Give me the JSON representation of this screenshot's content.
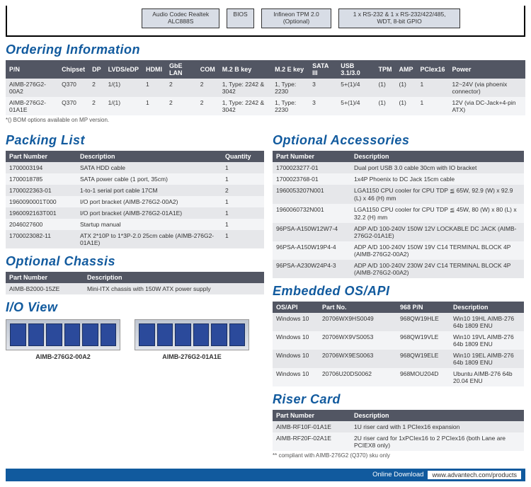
{
  "diagram": [
    "Audio Codec\nRealtek ALC888S",
    "BIOS",
    "Infineon TPM 2.0\n(Optional)",
    "1 x RS-232 & 1 x RS-232/422/485,\nWDT, 8-bit GPIO"
  ],
  "headings": {
    "ordering": "Ordering Information",
    "packing": "Packing List",
    "optchassis": "Optional Chassis",
    "ioview": "I/O View",
    "optacc": "Optional Accessories",
    "os": "Embedded OS/API",
    "riser": "Riser Card"
  },
  "ordering": {
    "cols": [
      "P/N",
      "Chipset",
      "DP",
      "LVDS/eDP",
      "HDMI",
      "GbE LAN",
      "COM",
      "M.2 B key",
      "M.2 E key",
      "SATA III",
      "USB 3.1/3.0",
      "TPM",
      "AMP",
      "PCIex16",
      "Power"
    ],
    "rows": [
      [
        "AIMB-276G2-00A2",
        "Q370",
        "2",
        "1/(1)",
        "1",
        "2",
        "2",
        "1, Type: 2242 & 3042",
        "1, Type: 2230",
        "3",
        "5+(1)/4",
        "(1)",
        "(1)",
        "1",
        "12~24V (via phoenix connector)"
      ],
      [
        "AIMB-276G2-01A1E",
        "Q370",
        "2",
        "1/(1)",
        "1",
        "2",
        "2",
        "1, Type: 2242 & 3042",
        "1, Type: 2230",
        "3",
        "5+(1)/4",
        "(1)",
        "(1)",
        "1",
        "12V (via DC-Jack+4-pin ATX)"
      ]
    ],
    "note": "*() BOM options available on MP version."
  },
  "packing": {
    "cols": [
      "Part Number",
      "Description",
      "Quantity"
    ],
    "rows": [
      [
        "1700003194",
        "SATA HDD cable",
        "1"
      ],
      [
        "1700018785",
        "SATA power cable (1 port, 35cm)",
        "1"
      ],
      [
        "1700022363-01",
        "1-to-1 serial port cable 17CM",
        "2"
      ],
      [
        "1960090001T000",
        "I/O port bracket (AIMB-276G2-00A2)",
        "1"
      ],
      [
        "1960092163T001",
        "I/O port bracket (AIMB-276G2-01A1E)",
        "1"
      ],
      [
        "2046027600",
        "Startup manual",
        "1"
      ],
      [
        "1700023082-11",
        "ATX 2*10P to 1*3P-2.0 25cm cable (AIMB-276G2-01A1E)",
        "1"
      ]
    ]
  },
  "optchassis": {
    "cols": [
      "Part Number",
      "Description"
    ],
    "rows": [
      [
        "AIMB-B2000-15ZE",
        "Mini-ITX chassis with 150W ATX power supply"
      ]
    ]
  },
  "io": {
    "a": "AIMB-276G2-00A2",
    "b": "AIMB-276G2-01A1E"
  },
  "optacc": {
    "cols": [
      "Part Number",
      "Description"
    ],
    "rows": [
      [
        "1700023277-01",
        "Dual port USB 3.0 cable 30cm with IO bracket"
      ],
      [
        "1700023768-01",
        "1x4P Phoenix to DC Jack 15cm cable"
      ],
      [
        "1960053207N001",
        "LGA1150 CPU cooler for CPU TDP ≦ 65W, 92.9 (W) x 92.9 (L) x 46 (H) mm"
      ],
      [
        "1960060732N001",
        "LGA1150 CPU cooler for CPU TDP ≦ 45W, 80 (W) x 80 (L) x 32.2 (H) mm"
      ],
      [
        "96PSA-A150W12W7-4",
        "ADP A/D 100-240V 150W 12V LOCKABLE DC JACK (AIMB-276G2-01A1E)"
      ],
      [
        "96PSA-A150W19P4-4",
        "ADP A/D 100-240V 150W 19V C14 TERMINAL BLOCK 4P (AIMB-276G2-00A2)"
      ],
      [
        "96PSA-A230W24P4-3",
        "ADP A/D 100-240V 230W 24V C14 TERMINAL BLOCK 4P (AIMB-276G2-00A2)"
      ]
    ]
  },
  "os": {
    "cols": [
      "OS/API",
      "Part No.",
      "968 P/N",
      "Description"
    ],
    "rows": [
      [
        "Windows 10",
        "20706WX9HS0049",
        "968QW19HLE",
        "Win10 19HL AIMB-276 64b 1809 ENU"
      ],
      [
        "Windows 10",
        "20706WX9VS0053",
        "968QW19VLE",
        "Win10 19VL AIMB-276 64b 1809 ENU"
      ],
      [
        "Windows 10",
        "20706WX9ES0063",
        "968QW19ELE",
        "Win10 19EL AIMB-276 64b 1809 ENU"
      ],
      [
        "Windows 10",
        "20706U20DS0062",
        "968MOU204D",
        "Ubuntu AIMB-276 64b 20.04 ENU"
      ]
    ]
  },
  "riser": {
    "cols": [
      "Part Number",
      "Description"
    ],
    "rows": [
      [
        "AIMB-RF10F-01A1E",
        "1U riser card with 1 PCIex16 expansion"
      ],
      [
        "AIMB-RF20F-02A1E",
        "2U riser card for 1xPCIex16 to 2 PCIex16 (both Lane are PCIEX8 only)"
      ]
    ],
    "note": "** compliant with AIMB-276G2 (Q370) sku only"
  },
  "download": {
    "label": "Online Download",
    "url": "www.advantech.com/products"
  }
}
